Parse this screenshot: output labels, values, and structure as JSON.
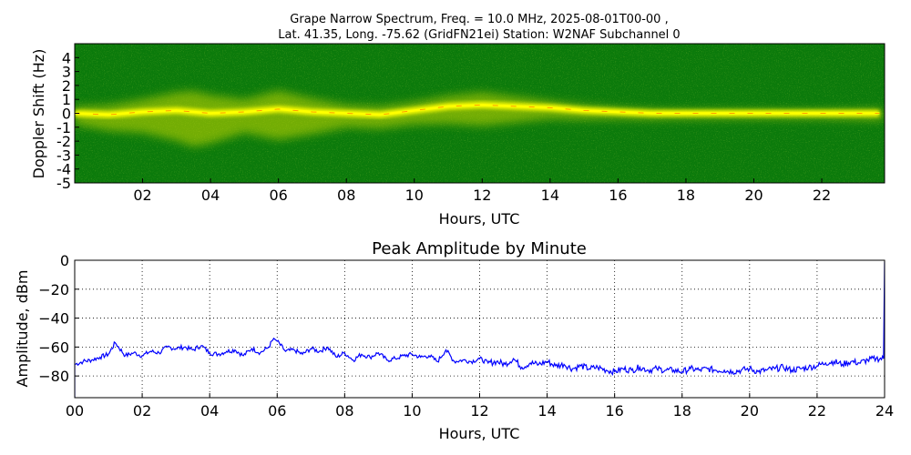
{
  "chart_data": [
    {
      "type": "heatmap",
      "title_line1": "Grape Narrow Spectrum, Freq. = 10.0 MHz, 2025-08-01T00-00 ,",
      "title_line2": "Lat.  41.35, Long. -75.62 (GridFN21ei) Station: W2NAF Subchannel 0",
      "xlabel": "Hours, UTC",
      "ylabel": "Doppler Shift (Hz)",
      "xlim": [
        0,
        24
      ],
      "ylim": [
        -5,
        5
      ],
      "x_tick_values": [
        2,
        4,
        6,
        8,
        10,
        12,
        14,
        16,
        18,
        20,
        22
      ],
      "x_tick_labels": [
        "02",
        "04",
        "06",
        "08",
        "10",
        "12",
        "14",
        "16",
        "18",
        "20",
        "22"
      ],
      "y_tick_values": [
        4,
        3,
        2,
        1,
        0,
        -1,
        -2,
        -3,
        -4,
        -5
      ],
      "y_tick_labels": [
        "4",
        "3",
        "2",
        "1",
        "0",
        "-1",
        "-2",
        "-3",
        "-4",
        "-5"
      ],
      "colors": {
        "background": "#0b7a0b",
        "mid": "#c8d800",
        "signal": "#ffff00",
        "peak": "#ff4000"
      },
      "signal_trace": [
        [
          0.0,
          0.0
        ],
        [
          1.0,
          -0.1
        ],
        [
          2.0,
          0.1
        ],
        [
          3.0,
          0.2
        ],
        [
          4.0,
          0.0
        ],
        [
          5.0,
          0.1
        ],
        [
          6.0,
          0.3
        ],
        [
          7.0,
          0.1
        ],
        [
          8.0,
          0.0
        ],
        [
          9.0,
          -0.1
        ],
        [
          10.0,
          0.2
        ],
        [
          11.0,
          0.5
        ],
        [
          12.0,
          0.6
        ],
        [
          13.0,
          0.5
        ],
        [
          14.0,
          0.4
        ],
        [
          15.0,
          0.2
        ],
        [
          16.0,
          0.1
        ],
        [
          17.0,
          0.0
        ],
        [
          18.0,
          0.0
        ],
        [
          19.0,
          0.0
        ],
        [
          20.0,
          0.0
        ],
        [
          21.0,
          0.0
        ],
        [
          22.0,
          0.0
        ],
        [
          23.0,
          0.0
        ],
        [
          23.7,
          0.0
        ]
      ],
      "spread_hz": [
        [
          0.0,
          0.8
        ],
        [
          2.0,
          1.5
        ],
        [
          3.5,
          2.5
        ],
        [
          5.0,
          1.5
        ],
        [
          6.0,
          2.2
        ],
        [
          8.0,
          1.0
        ],
        [
          10.0,
          1.0
        ],
        [
          12.0,
          1.5
        ],
        [
          14.0,
          0.8
        ],
        [
          16.0,
          0.5
        ],
        [
          18.0,
          0.4
        ],
        [
          22.0,
          0.4
        ],
        [
          23.7,
          0.5
        ]
      ]
    },
    {
      "type": "line",
      "title": "Peak Amplitude by Minute",
      "xlabel": "Hours, UTC",
      "ylabel": "Amplitude, dBm",
      "xlim": [
        0,
        24
      ],
      "ylim": [
        -95,
        0
      ],
      "grid": true,
      "x_tick_values": [
        0,
        2,
        4,
        6,
        8,
        10,
        12,
        14,
        16,
        18,
        20,
        22,
        24
      ],
      "x_tick_labels": [
        "00",
        "02",
        "04",
        "06",
        "08",
        "10",
        "12",
        "14",
        "16",
        "18",
        "20",
        "22",
        "24"
      ],
      "y_tick_values": [
        0,
        -20,
        -40,
        -60,
        -80
      ],
      "y_tick_labels": [
        "0",
        "−20",
        "−40",
        "−60",
        "−80"
      ],
      "series": [
        {
          "color": "#0000ff",
          "x": [
            0.0,
            0.25,
            0.5,
            0.75,
            1.0,
            1.2,
            1.5,
            1.75,
            2.0,
            2.25,
            2.5,
            2.75,
            3.0,
            3.25,
            3.5,
            3.75,
            4.0,
            4.25,
            4.5,
            4.75,
            5.0,
            5.25,
            5.5,
            5.75,
            5.9,
            6.0,
            6.25,
            6.5,
            6.75,
            7.0,
            7.25,
            7.5,
            7.75,
            8.0,
            8.25,
            8.5,
            8.75,
            9.0,
            9.25,
            9.5,
            9.75,
            10.0,
            10.25,
            10.5,
            10.75,
            11.0,
            11.25,
            11.5,
            11.75,
            12.0,
            12.25,
            12.5,
            12.75,
            13.0,
            13.25,
            13.5,
            13.75,
            14.0,
            14.25,
            14.5,
            14.75,
            15.0,
            15.25,
            15.5,
            15.75,
            16.0,
            16.25,
            16.5,
            16.75,
            17.0,
            17.25,
            17.5,
            17.75,
            18.0,
            18.25,
            18.5,
            18.75,
            19.0,
            19.25,
            19.5,
            19.75,
            20.0,
            20.25,
            20.5,
            20.75,
            21.0,
            21.25,
            21.5,
            21.75,
            22.0,
            22.25,
            22.5,
            22.75,
            23.0,
            23.25,
            23.5,
            23.75,
            23.97,
            24.0
          ],
          "values": [
            -72,
            -70,
            -69,
            -67,
            -65,
            -57,
            -66,
            -64,
            -66,
            -63,
            -64,
            -60,
            -61,
            -60,
            -62,
            -59,
            -64,
            -65,
            -63,
            -62,
            -66,
            -61,
            -64,
            -60,
            -54,
            -56,
            -63,
            -62,
            -65,
            -61,
            -63,
            -60,
            -67,
            -64,
            -69,
            -65,
            -67,
            -64,
            -69,
            -68,
            -66,
            -65,
            -67,
            -66,
            -70,
            -62,
            -70,
            -69,
            -70,
            -68,
            -71,
            -70,
            -72,
            -68,
            -74,
            -71,
            -72,
            -70,
            -73,
            -72,
            -75,
            -73,
            -75,
            -74,
            -76,
            -77,
            -75,
            -76,
            -74,
            -76,
            -75,
            -76,
            -76,
            -77,
            -75,
            -76,
            -75,
            -76,
            -76,
            -77,
            -76,
            -75,
            -77,
            -76,
            -75,
            -74,
            -76,
            -75,
            -74,
            -73,
            -71,
            -70,
            -72,
            -70,
            -71,
            -69,
            -68,
            -68,
            -1
          ]
        }
      ]
    }
  ]
}
